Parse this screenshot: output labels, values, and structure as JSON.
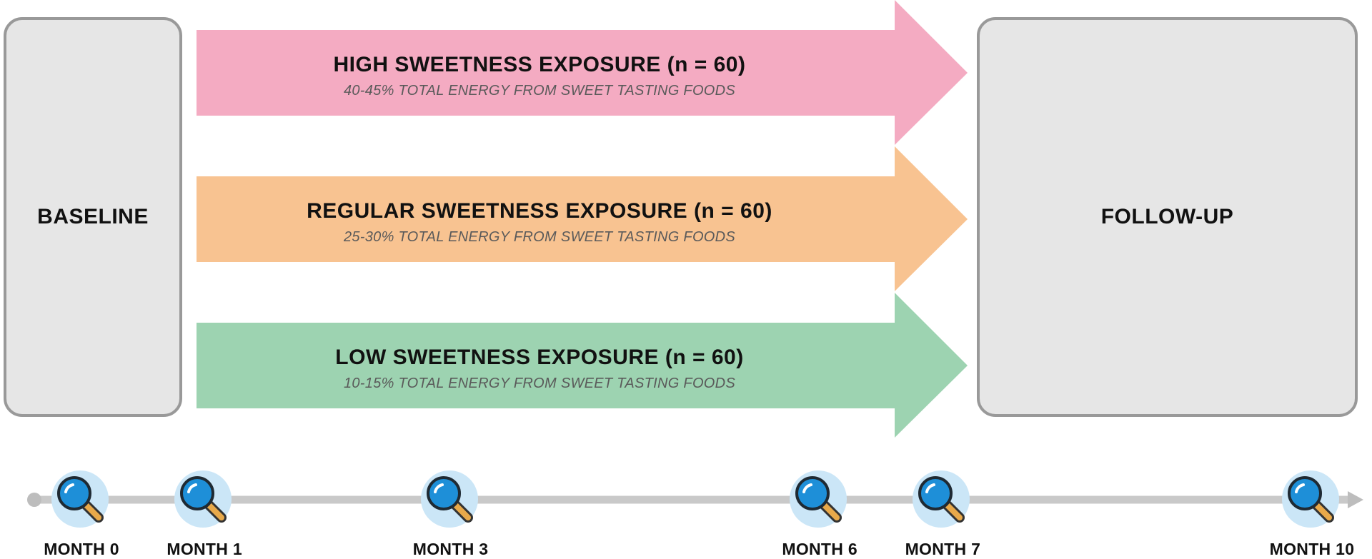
{
  "baseline": {
    "label": "BASELINE"
  },
  "follow_up": {
    "label": "FOLLOW-UP"
  },
  "arms": [
    {
      "title": "HIGH SWEETNESS EXPOSURE (n = 60)",
      "subtitle": "40-45% TOTAL ENERGY FROM SWEET TASTING FOODS",
      "color": "#f4abc2"
    },
    {
      "title": "REGULAR SWEETNESS EXPOSURE (n = 60)",
      "subtitle": "25-30% TOTAL ENERGY FROM SWEET TASTING FOODS",
      "color": "#f8c391"
    },
    {
      "title": "LOW SWEETNESS EXPOSURE (n = 60)",
      "subtitle": "10-15% TOTAL ENERGY FROM SWEET TASTING FOODS",
      "color": "#9dd3b1"
    }
  ],
  "timeline": {
    "months": [
      {
        "label": "MONTH 0",
        "month": 0
      },
      {
        "label": "MONTH 1",
        "month": 1
      },
      {
        "label": "MONTH 3",
        "month": 3
      },
      {
        "label": "MONTH 6",
        "month": 6
      },
      {
        "label": "MONTH 7",
        "month": 7
      },
      {
        "label": "MONTH 10",
        "month": 10
      }
    ],
    "icon": "magnifying-glass-icon",
    "line_color": "#c9c9c9",
    "icon_bg_color": "#cbe6f7",
    "lens_color": "#1e8fd8",
    "handle_color": "#e8a94a"
  }
}
